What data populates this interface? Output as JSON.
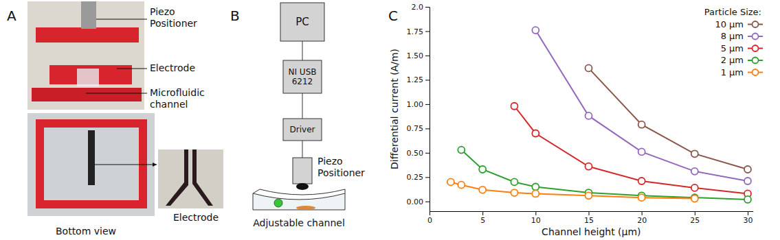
{
  "panel_a": {
    "label": "A",
    "callouts": [
      "Piezo\nPositioner",
      "Electrode",
      "Microfluidic\nchannel"
    ],
    "captions": [
      "Bottom view",
      "Electrode"
    ]
  },
  "panel_b": {
    "label": "B",
    "nodes": [
      "PC",
      "NI USB\n6212",
      "Driver"
    ],
    "actuator": "Piezo\nPositioner",
    "channel": "Adjustable channel"
  },
  "chart_data": {
    "panel_label": "C",
    "type": "line",
    "xlabel": "Channel height (µm)",
    "ylabel": "Differential current (A/m)",
    "legend_title": "Particle Size:",
    "legend": "upper right",
    "grid": false,
    "marker": "circle",
    "xlim": [
      0,
      30.5
    ],
    "xticks": [
      0,
      5,
      10,
      15,
      20,
      25,
      30
    ],
    "ylim": [
      -0.1,
      2.0
    ],
    "yticks": [
      {
        "value": 0,
        "label": "0.00"
      },
      {
        "value": 0.25,
        "label": "0.25"
      },
      {
        "value": 0.5,
        "label": "0.50"
      },
      {
        "value": 0.75,
        "label": "0.75"
      },
      {
        "value": 1,
        "label": "1.00"
      },
      {
        "value": 1.25,
        "label": "1.25"
      },
      {
        "value": 1.5,
        "label": "1.50"
      },
      {
        "value": 1.75,
        "label": "1.75"
      },
      {
        "value": 2,
        "label": "2.0"
      }
    ],
    "series": [
      {
        "name": "10 µm",
        "color": "#8c564b",
        "x": [
          15,
          20,
          25,
          30
        ],
        "values": [
          1.37,
          0.79,
          0.49,
          0.33
        ]
      },
      {
        "name": "8 µm",
        "color": "#9467bd",
        "x": [
          10,
          15,
          20,
          25,
          30
        ],
        "values": [
          1.76,
          0.88,
          0.51,
          0.31,
          0.21
        ]
      },
      {
        "name": "5 µm",
        "color": "#d62728",
        "x": [
          8,
          10,
          15,
          20,
          25,
          30
        ],
        "values": [
          0.98,
          0.7,
          0.36,
          0.21,
          0.14,
          0.08
        ]
      },
      {
        "name": "2 µm",
        "color": "#2ca02c",
        "x": [
          3,
          5,
          8,
          10,
          15,
          20,
          25,
          30
        ],
        "values": [
          0.53,
          0.33,
          0.2,
          0.15,
          0.09,
          0.06,
          0.04,
          0.02
        ]
      },
      {
        "name": "1 µm",
        "color": "#ff7f0e",
        "x": [
          2,
          3,
          5,
          8,
          10,
          15,
          20,
          25
        ],
        "values": [
          0.2,
          0.17,
          0.12,
          0.09,
          0.08,
          0.06,
          0.04,
          0.03
        ]
      }
    ]
  }
}
